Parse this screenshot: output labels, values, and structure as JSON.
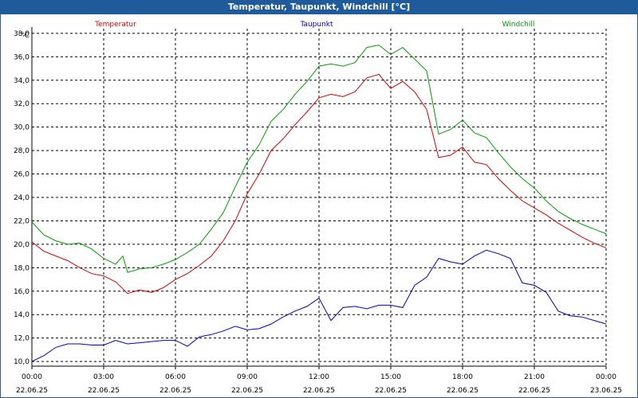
{
  "window_title": "Temperatur, Taupunkt, Windchill [°C]",
  "chart_data": {
    "type": "line",
    "title": "Temperatur, Taupunkt, Windchill [°C]",
    "y_unit_label": "°C",
    "ylim": [
      9.6,
      38.4
    ],
    "y_ticks": [
      10,
      12,
      14,
      16,
      18,
      20,
      22,
      24,
      26,
      28,
      30,
      32,
      34,
      36,
      38
    ],
    "y_tick_labels": [
      "10,0",
      "12,0",
      "14,0",
      "16,0",
      "18,0",
      "20,0",
      "22,0",
      "24,0",
      "26,0",
      "28,0",
      "30,0",
      "32,0",
      "34,0",
      "36,0",
      "38,0"
    ],
    "x_range_hours": [
      0,
      24
    ],
    "x_ticks": [
      {
        "time": "00:00",
        "date": "22.06.25"
      },
      {
        "time": "03:00",
        "date": "22.06.25"
      },
      {
        "time": "06:00",
        "date": "22.06.25"
      },
      {
        "time": "09:00",
        "date": "22.06.25"
      },
      {
        "time": "12:00",
        "date": "22.06.25"
      },
      {
        "time": "15:00",
        "date": "22.06.25"
      },
      {
        "time": "18:00",
        "date": "22.06.25"
      },
      {
        "time": "21:00",
        "date": "22.06.25"
      },
      {
        "time": "00:00",
        "date": "23.06.25"
      }
    ],
    "grid": true,
    "legend_placement": "top",
    "series": [
      {
        "name": "Temperatur",
        "color": "#e00000",
        "x_hours": [
          0,
          0.5,
          1,
          1.5,
          2,
          2.5,
          3,
          3.5,
          3.8,
          4,
          4.5,
          5,
          5.5,
          6,
          6.5,
          7,
          7.5,
          8,
          8.5,
          9,
          9.5,
          10,
          10.5,
          11,
          11.5,
          12,
          12.5,
          13,
          13.5,
          14,
          14.5,
          15,
          15.5,
          16,
          16.5,
          17,
          17.5,
          18,
          18.5,
          19,
          19.5,
          20,
          20.5,
          21,
          21.5,
          22,
          22.5,
          23,
          23.5,
          24
        ],
        "values": [
          20.2,
          19.4,
          19.0,
          18.6,
          18.0,
          17.5,
          17.3,
          16.8,
          16.2,
          15.8,
          16.1,
          15.9,
          16.3,
          17.0,
          17.5,
          18.2,
          19.0,
          20.3,
          22.0,
          24.3,
          26.0,
          28.0,
          29.0,
          30.2,
          31.3,
          32.5,
          32.8,
          32.6,
          33.0,
          34.2,
          34.5,
          33.3,
          33.9,
          33.0,
          31.5,
          27.4,
          27.6,
          28.3,
          27.0,
          26.8,
          25.6,
          24.6,
          23.7,
          23.1,
          22.5,
          21.8,
          21.2,
          20.6,
          20.1,
          19.7
        ]
      },
      {
        "name": "Taupunkt",
        "color": "#0000c0",
        "x_hours": [
          0,
          0.5,
          1,
          1.5,
          2,
          2.5,
          3,
          3.5,
          4,
          4.5,
          5,
          5.5,
          6,
          6.5,
          7,
          7.5,
          8,
          8.5,
          9,
          9.5,
          10,
          10.5,
          11,
          11.5,
          12,
          12.5,
          13,
          13.5,
          14,
          14.5,
          15,
          15.5,
          16,
          16.5,
          17,
          17.5,
          18,
          18.5,
          19,
          19.5,
          20,
          20.5,
          21,
          21.5,
          22,
          22.5,
          23,
          23.5,
          24
        ],
        "values": [
          10.0,
          10.5,
          11.2,
          11.5,
          11.5,
          11.4,
          11.4,
          11.8,
          11.5,
          11.6,
          11.7,
          11.8,
          11.8,
          11.3,
          12.1,
          12.3,
          12.6,
          13.0,
          12.7,
          12.8,
          13.2,
          13.8,
          14.3,
          14.7,
          15.4,
          13.5,
          14.6,
          14.7,
          14.5,
          14.8,
          14.8,
          14.6,
          16.5,
          17.2,
          18.8,
          18.5,
          18.3,
          19.0,
          19.5,
          19.2,
          18.8,
          16.7,
          16.5,
          15.9,
          14.3,
          13.9,
          13.8,
          13.5,
          13.2
        ]
      },
      {
        "name": "Windchill",
        "color": "#00a000",
        "x_hours": [
          0,
          0.5,
          1,
          1.5,
          2,
          2.5,
          3,
          3.5,
          3.8,
          4,
          4.5,
          5,
          5.5,
          6,
          6.5,
          7,
          7.5,
          8,
          8.5,
          9,
          9.5,
          10,
          10.5,
          11,
          11.5,
          12,
          12.5,
          13,
          13.5,
          14,
          14.5,
          15,
          15.5,
          16,
          16.5,
          17,
          17.5,
          18,
          18.5,
          19,
          19.5,
          20,
          20.5,
          21,
          21.5,
          22,
          22.5,
          23,
          23.5,
          24
        ],
        "values": [
          21.9,
          20.8,
          20.3,
          20.0,
          20.1,
          19.6,
          18.8,
          18.3,
          19.0,
          17.6,
          17.9,
          18.0,
          18.3,
          18.7,
          19.3,
          20.0,
          21.3,
          22.7,
          24.9,
          27.0,
          28.5,
          30.5,
          31.5,
          32.8,
          33.9,
          35.2,
          35.4,
          35.2,
          35.5,
          36.8,
          37.0,
          36.2,
          36.8,
          35.8,
          34.8,
          29.4,
          29.8,
          30.6,
          29.5,
          29.1,
          27.8,
          26.6,
          25.6,
          24.8,
          23.7,
          22.8,
          22.2,
          21.7,
          21.3,
          20.9
        ]
      }
    ]
  }
}
